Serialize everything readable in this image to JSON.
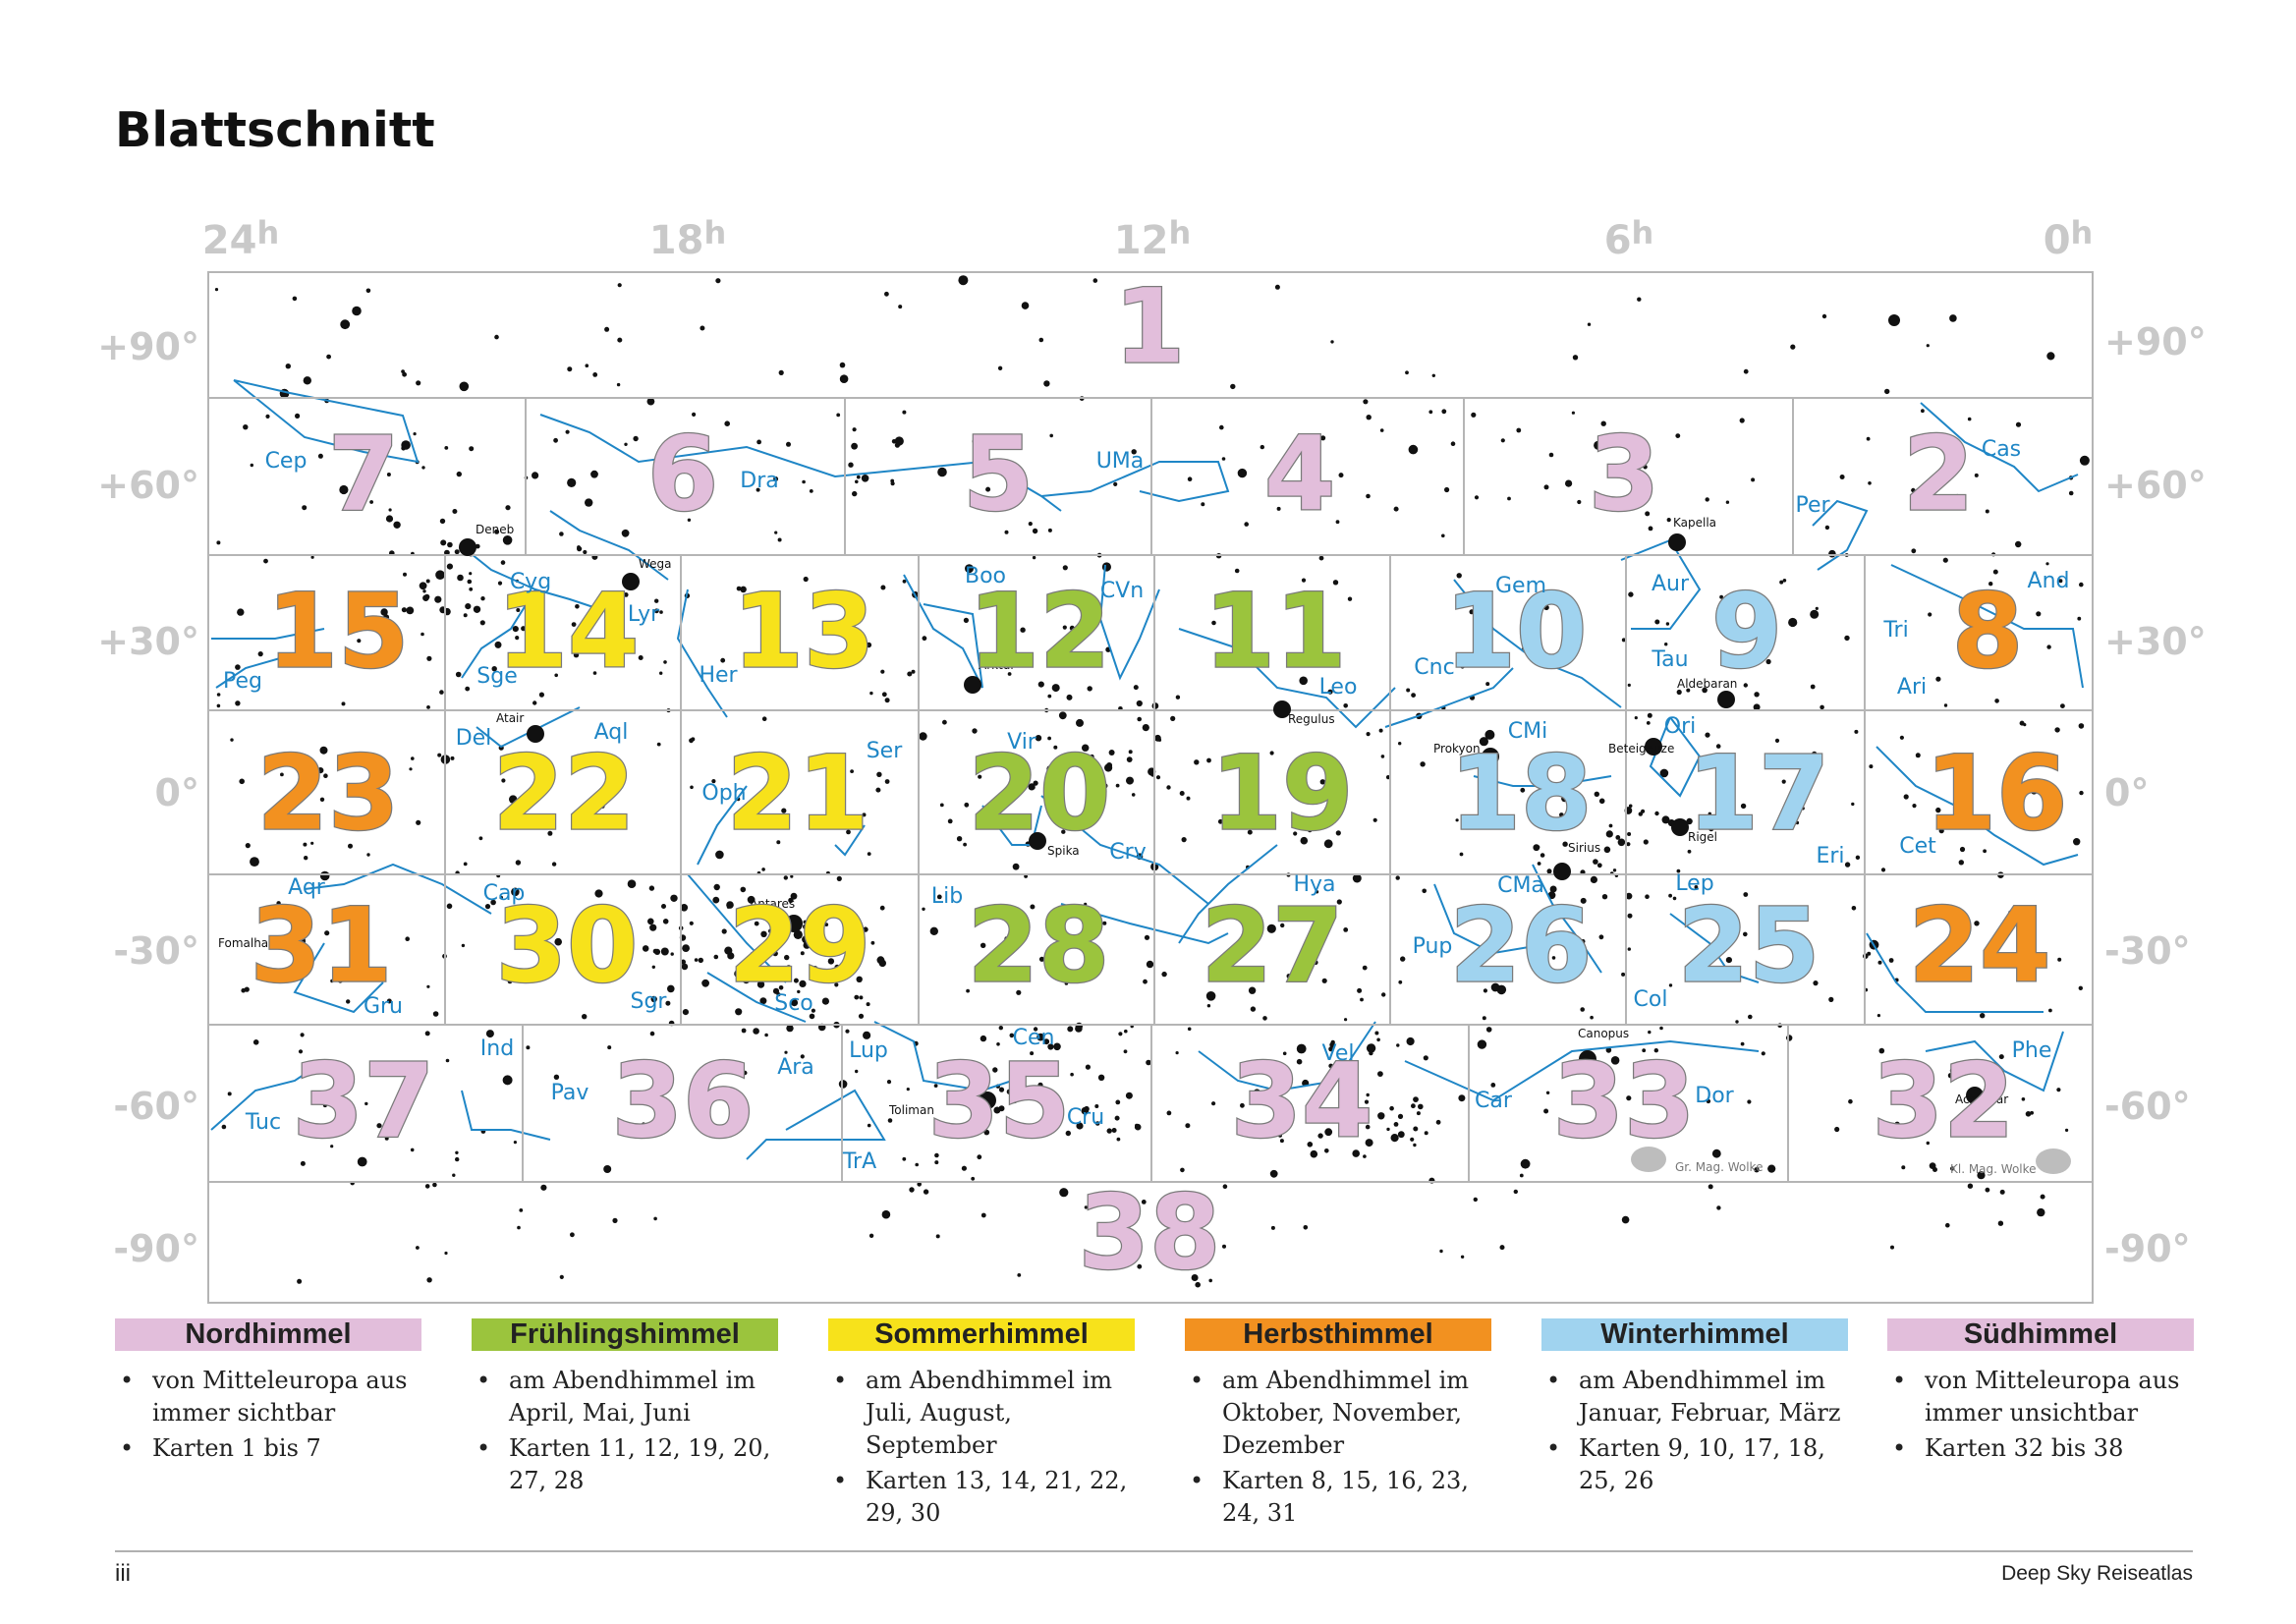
{
  "title": "Blattschnitt",
  "ra_labels": [
    {
      "id": "24",
      "text": "24h"
    },
    {
      "id": "18",
      "text": "18h"
    },
    {
      "id": "12",
      "text": "12h"
    },
    {
      "id": "6",
      "text": "6h"
    },
    {
      "id": "0",
      "text": "0h"
    }
  ],
  "dec_labels": [
    "+90°",
    "+60°",
    "+30°",
    "0°",
    "-30°",
    "-60°",
    "-90°"
  ],
  "colors": {
    "nordhimmel": "#e2bedb",
    "fruehling": "#9bc43d",
    "sommer": "#f7e21b",
    "herbst": "#f29120",
    "winter": "#a0d3ef",
    "suedhimmel": "#e2bedb",
    "constellation": "#1f86c6",
    "grid": "#b5b5b5"
  },
  "maps": [
    {
      "n": "1",
      "season": "nordhimmel"
    },
    {
      "n": "2",
      "season": "nordhimmel"
    },
    {
      "n": "3",
      "season": "nordhimmel"
    },
    {
      "n": "4",
      "season": "nordhimmel"
    },
    {
      "n": "5",
      "season": "nordhimmel"
    },
    {
      "n": "6",
      "season": "nordhimmel"
    },
    {
      "n": "7",
      "season": "nordhimmel"
    },
    {
      "n": "8",
      "season": "herbst"
    },
    {
      "n": "9",
      "season": "winter"
    },
    {
      "n": "10",
      "season": "winter"
    },
    {
      "n": "11",
      "season": "fruehling"
    },
    {
      "n": "12",
      "season": "fruehling"
    },
    {
      "n": "13",
      "season": "sommer"
    },
    {
      "n": "14",
      "season": "sommer"
    },
    {
      "n": "15",
      "season": "herbst"
    },
    {
      "n": "16",
      "season": "herbst"
    },
    {
      "n": "17",
      "season": "winter"
    },
    {
      "n": "18",
      "season": "winter"
    },
    {
      "n": "19",
      "season": "fruehling"
    },
    {
      "n": "20",
      "season": "fruehling"
    },
    {
      "n": "21",
      "season": "sommer"
    },
    {
      "n": "22",
      "season": "sommer"
    },
    {
      "n": "23",
      "season": "herbst"
    },
    {
      "n": "24",
      "season": "herbst"
    },
    {
      "n": "25",
      "season": "winter"
    },
    {
      "n": "26",
      "season": "winter"
    },
    {
      "n": "27",
      "season": "fruehling"
    },
    {
      "n": "28",
      "season": "fruehling"
    },
    {
      "n": "29",
      "season": "sommer"
    },
    {
      "n": "30",
      "season": "sommer"
    },
    {
      "n": "31",
      "season": "herbst"
    },
    {
      "n": "32",
      "season": "suedhimmel"
    },
    {
      "n": "33",
      "season": "suedhimmel"
    },
    {
      "n": "34",
      "season": "suedhimmel"
    },
    {
      "n": "35",
      "season": "suedhimmel"
    },
    {
      "n": "36",
      "season": "suedhimmel"
    },
    {
      "n": "37",
      "season": "suedhimmel"
    },
    {
      "n": "38",
      "season": "suedhimmel"
    }
  ],
  "constellations": [
    "Cep",
    "Dra",
    "UMa",
    "Cas",
    "Per",
    "Cyg",
    "Lyr",
    "Boo",
    "CVn",
    "Gem",
    "Aur",
    "And",
    "Tri",
    "Ari",
    "Peg",
    "Sge",
    "Her",
    "Leo",
    "Cnc",
    "Tau",
    "Del",
    "Aql",
    "Ser",
    "Vir",
    "Ori",
    "CMi",
    "Oph",
    "Crv",
    "Eri",
    "Cet",
    "Aqr",
    "Cap",
    "Lib",
    "Hya",
    "CMa",
    "Lep",
    "Pup",
    "Gru",
    "Sgr",
    "Sco",
    "Col",
    "Ind",
    "Lup",
    "Cen",
    "Vel",
    "Phe",
    "Pav",
    "Ara",
    "Tuc",
    "Cru",
    "Car",
    "Dor",
    "TrA"
  ],
  "stars": [
    "Deneb",
    "Wega",
    "Kapella",
    "Arktur",
    "Regulus",
    "Aldebaran",
    "Atair",
    "Prokyon",
    "Beteigeuze",
    "Spika",
    "Rigel",
    "Sirius",
    "Antares",
    "Fomalhaut",
    "Canopus",
    "Toliman",
    "Achernar"
  ],
  "clouds": [
    "Gr. Mag. Wolke",
    "Kl. Mag. Wolke"
  ],
  "legend": [
    {
      "title": "Nordhimmel",
      "color": "#e2bedb",
      "items": [
        "von Mitteleuropa aus immer sichtbar",
        "Karten 1 bis 7"
      ]
    },
    {
      "title": "Frühlingshimmel",
      "color": "#9bc43d",
      "items": [
        "am Abendhimmel im April, Mai, Juni",
        "Karten 11, 12, 19, 20, 27, 28"
      ]
    },
    {
      "title": "Sommerhimmel",
      "color": "#f7e21b",
      "items": [
        "am Abendhimmel im Juli, August, September",
        "Karten 13, 14, 21, 22, 29, 30"
      ]
    },
    {
      "title": "Herbsthimmel",
      "color": "#f29120",
      "items": [
        "am Abendhimmel im Oktober, November, Dezember",
        "Karten 8, 15, 16, 23, 24, 31"
      ]
    },
    {
      "title": "Winterhimmel",
      "color": "#a0d3ef",
      "items": [
        "am Abendhimmel im Januar, Februar, März",
        "Karten 9, 10, 17, 18, 25, 26"
      ]
    },
    {
      "title": "Südhimmel",
      "color": "#e2bedb",
      "items": [
        "von Mitteleuropa aus immer unsichtbar",
        "Karten 32 bis 38"
      ]
    }
  ],
  "footer": {
    "page": "iii",
    "book": "Deep Sky Reiseatlas"
  }
}
